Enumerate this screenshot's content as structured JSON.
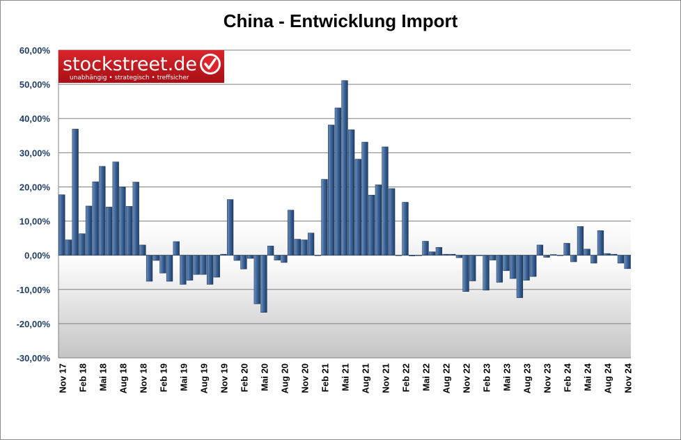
{
  "logo": {
    "name": "stockstreet.de",
    "tagline": "unabhängig • strategisch • treffsicher",
    "color": "#c4141b"
  },
  "chart_data": {
    "type": "bar",
    "title": "China - Entwicklung Import",
    "xlabel": "",
    "ylabel": "",
    "ylim": [
      -30,
      60
    ],
    "y_ticks": [
      "60,00%",
      "50,00%",
      "40,00%",
      "30,00%",
      "20,00%",
      "10,00%",
      "0,00%",
      "-10,00%",
      "-20,00%",
      "-30,00%"
    ],
    "y_tick_values": [
      60,
      50,
      40,
      30,
      20,
      10,
      0,
      -10,
      -20,
      -30
    ],
    "x_tick_labels": [
      "Nov 17",
      "Feb 18",
      "Mai 18",
      "Aug 18",
      "Nov 18",
      "Feb 19",
      "Mai 19",
      "Aug 19",
      "Nov 19",
      "Feb 20",
      "Mai 20",
      "Aug 20",
      "Nov 20",
      "Feb 21",
      "Mai 21",
      "Aug 21",
      "Nov 21",
      "Feb 22",
      "Mai 22",
      "Aug 22",
      "Nov 22",
      "Feb 23",
      "Mai 23",
      "Aug 23",
      "Nov 23",
      "Feb 24",
      "Mai 24",
      "Aug 24",
      "Nov 24"
    ],
    "grid": true,
    "legend": "none",
    "bar_color": "#2f5586",
    "categories": [
      "Nov 17",
      "Dez 17",
      "Jan 18",
      "Feb 18",
      "Mrz 18",
      "Apr 18",
      "Mai 18",
      "Jun 18",
      "Jul 18",
      "Aug 18",
      "Sep 18",
      "Okt 18",
      "Nov 18",
      "Dez 18",
      "Jan 19",
      "Feb 19",
      "Mrz 19",
      "Apr 19",
      "Mai 19",
      "Jun 19",
      "Jul 19",
      "Aug 19",
      "Sep 19",
      "Okt 19",
      "Nov 19",
      "Dez 19",
      "Jan 20",
      "Feb 20",
      "Mrz 20",
      "Apr 20",
      "Mai 20",
      "Jun 20",
      "Jul 20",
      "Aug 20",
      "Sep 20",
      "Okt 20",
      "Nov 20",
      "Dez 20",
      "Jan 21",
      "Feb 21",
      "Mrz 21",
      "Apr 21",
      "Mai 21",
      "Jun 21",
      "Jul 21",
      "Aug 21",
      "Sep 21",
      "Okt 21",
      "Nov 21",
      "Dez 21",
      "Jan 22",
      "Feb 22",
      "Mrz 22",
      "Apr 22",
      "Mai 22",
      "Jun 22",
      "Jul 22",
      "Aug 22",
      "Sep 22",
      "Okt 22",
      "Nov 22",
      "Dez 22",
      "Jan 23",
      "Feb 23",
      "Mrz 23",
      "Apr 23",
      "Mai 23",
      "Jun 23",
      "Jul 23",
      "Aug 23",
      "Sep 23",
      "Okt 23",
      "Nov 23",
      "Dez 23",
      "Jan 24",
      "Feb 24",
      "Mrz 24",
      "Apr 24",
      "Mai 24",
      "Jun 24",
      "Jul 24",
      "Aug 24",
      "Sep 24",
      "Okt 24",
      "Nov 24"
    ],
    "values": [
      17.7,
      4.5,
      36.9,
      6.3,
      14.4,
      21.5,
      26.0,
      14.1,
      27.3,
      20.0,
      14.3,
      21.4,
      3.0,
      -7.6,
      -1.5,
      -5.2,
      -7.6,
      4.0,
      -8.5,
      -7.3,
      -5.6,
      -5.6,
      -8.5,
      -6.4,
      0.3,
      16.3,
      -1.5,
      -4.0,
      -0.9,
      -14.2,
      -16.7,
      2.7,
      -1.4,
      -2.1,
      13.2,
      4.7,
      4.5,
      6.5,
      0.0,
      22.2,
      38.1,
      43.1,
      51.1,
      36.7,
      28.1,
      33.1,
      17.6,
      20.6,
      31.7,
      19.5,
      0.0,
      15.5,
      -0.2,
      -0.1,
      4.1,
      1.0,
      2.3,
      0.3,
      0.3,
      -0.7,
      -10.6,
      -7.5,
      -0.1,
      -10.2,
      -1.4,
      -7.9,
      -4.5,
      -6.8,
      -12.4,
      -7.3,
      -6.2,
      3.0,
      -0.6,
      0.2,
      0.0,
      3.5,
      -1.9,
      8.4,
      1.8,
      -2.3,
      7.2,
      0.5,
      0.3,
      -2.3,
      -3.9
    ]
  }
}
